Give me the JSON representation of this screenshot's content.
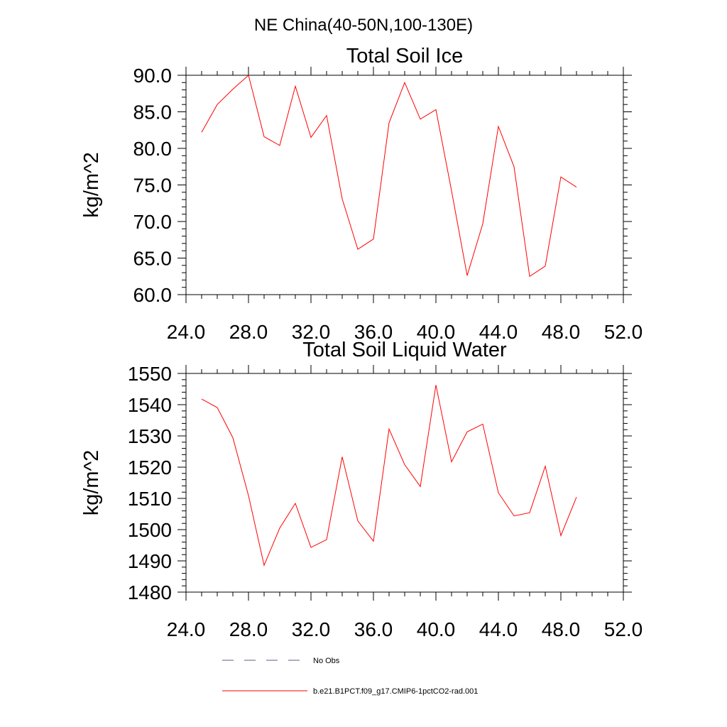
{
  "figure_title": "NE China(40-50N,100-130E)",
  "legend": [
    {
      "label": "No Obs",
      "style": "dashed",
      "color": "#5b5b8a"
    },
    {
      "label": "b.e21.B1PCT.f09_g17.CMIP6-1pctCO2-rad.001",
      "style": "solid",
      "color": "#ff0000"
    }
  ],
  "chart_data": [
    {
      "type": "line",
      "title": "Total Soil Ice",
      "xlabel": "",
      "ylabel": "kg/m^2",
      "xlim": [
        24,
        52
      ],
      "ylim": [
        60,
        90
      ],
      "x_ticks": [
        24,
        28,
        32,
        36,
        40,
        44,
        48,
        52
      ],
      "x_tick_labels": [
        "24.0",
        "28.0",
        "32.0",
        "36.0",
        "40.0",
        "44.0",
        "48.0",
        "52.0"
      ],
      "y_ticks": [
        60,
        65,
        70,
        75,
        80,
        85,
        90
      ],
      "y_tick_labels": [
        "60.0",
        "65.0",
        "70.0",
        "75.0",
        "80.0",
        "85.0",
        "90.0"
      ],
      "grid": false,
      "series": [
        {
          "color": "#ff0000",
          "x": [
            25,
            26,
            27,
            28,
            29,
            30,
            31,
            32,
            33,
            34,
            35,
            36,
            37,
            38,
            39,
            40,
            41,
            42,
            43,
            44,
            45,
            46,
            47,
            48,
            49
          ],
          "values": [
            82.2,
            86.0,
            88.1,
            90.0,
            81.6,
            80.4,
            88.5,
            81.5,
            84.5,
            73.1,
            66.2,
            67.6,
            83.5,
            89.0,
            84.0,
            85.3,
            74.2,
            62.6,
            69.7,
            83.0,
            77.5,
            62.5,
            63.9,
            76.1,
            74.7
          ]
        }
      ]
    },
    {
      "type": "line",
      "title": "Total Soil Liquid Water",
      "xlabel": "",
      "ylabel": "kg/m^2",
      "xlim": [
        24,
        52
      ],
      "ylim": [
        1480,
        1550
      ],
      "x_ticks": [
        24,
        28,
        32,
        36,
        40,
        44,
        48,
        52
      ],
      "x_tick_labels": [
        "24.0",
        "28.0",
        "32.0",
        "36.0",
        "40.0",
        "44.0",
        "48.0",
        "52.0"
      ],
      "y_ticks": [
        1480,
        1490,
        1500,
        1510,
        1520,
        1530,
        1540,
        1550
      ],
      "y_tick_labels": [
        "1480",
        "1490",
        "1500",
        "1510",
        "1520",
        "1530",
        "1540",
        "1550"
      ],
      "grid": false,
      "series": [
        {
          "color": "#ff0000",
          "x": [
            25,
            26,
            27,
            28,
            29,
            30,
            31,
            32,
            33,
            34,
            35,
            36,
            37,
            38,
            39,
            40,
            41,
            42,
            43,
            44,
            45,
            46,
            47,
            48,
            49
          ],
          "values": [
            1541.8,
            1539.1,
            1529.4,
            1510.9,
            1488.6,
            1500.5,
            1508.4,
            1494.3,
            1496.8,
            1523.3,
            1502.8,
            1496.3,
            1532.2,
            1520.8,
            1513.8,
            1546.3,
            1521.7,
            1531.3,
            1533.8,
            1511.8,
            1504.4,
            1505.4,
            1520.3,
            1498.1,
            1510.4
          ]
        }
      ]
    }
  ]
}
